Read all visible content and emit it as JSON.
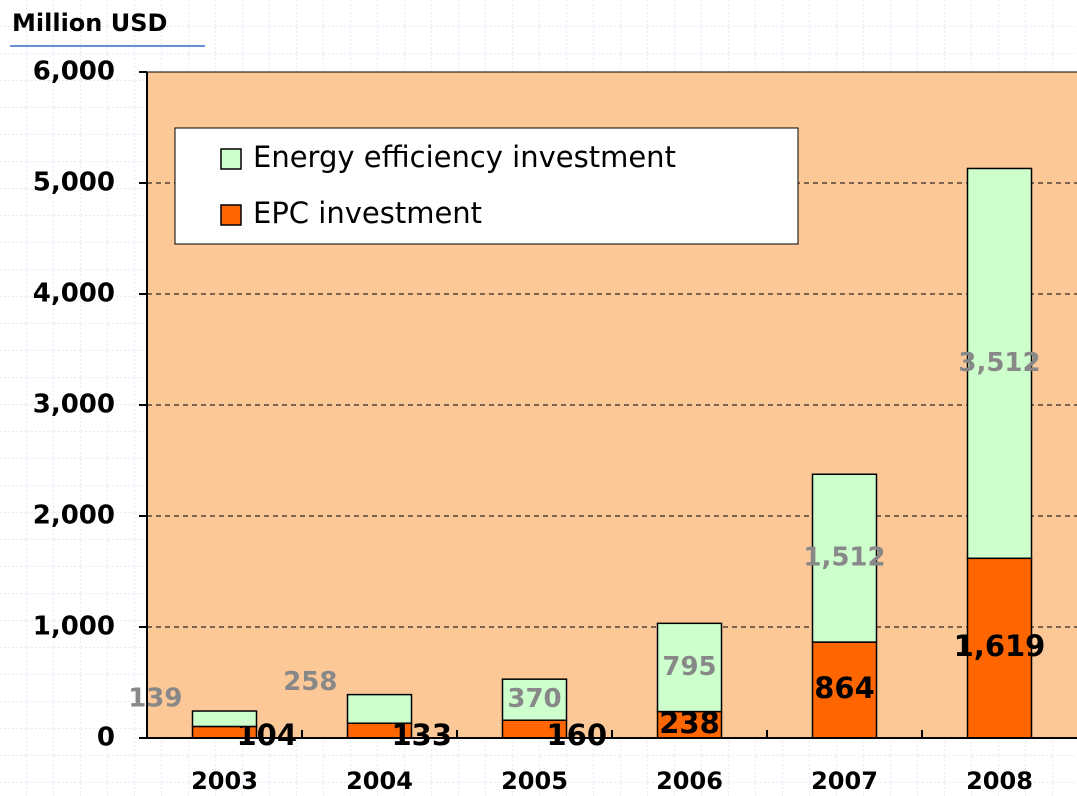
{
  "chart_data": {
    "type": "stacked_bar",
    "y_label": "Million USD",
    "categories": [
      "2003",
      "2004",
      "2005",
      "2006",
      "2007",
      "2008"
    ],
    "series": [
      {
        "name": "EPC investment",
        "color": "#ff6600",
        "label_color": "#000000",
        "values": [
          104,
          133,
          160,
          238,
          864,
          1619
        ],
        "value_labels": [
          "104",
          "133",
          "160",
          "238",
          "864",
          "1,619"
        ]
      },
      {
        "name": "Energy efficiency investment",
        "color": "#ccffcc",
        "label_color": "#888888",
        "values": [
          139,
          258,
          370,
          795,
          1512,
          3512
        ],
        "value_labels": [
          "139",
          "258",
          "370",
          "795",
          "1,512",
          "3,512"
        ]
      }
    ],
    "ylim": [
      0,
      6000
    ],
    "yticks": [
      0,
      {
        "value": 1000,
        "label": "1,000"
      },
      {
        "value": 2000,
        "label": "2,000"
      },
      {
        "value": 3000,
        "label": "3,000"
      },
      {
        "value": 4000,
        "label": "4,000"
      },
      {
        "value": 5000,
        "label": "5,000"
      },
      {
        "value": 6000,
        "label": "6,000"
      }
    ],
    "grid": true,
    "legend": "upper left",
    "plot_background": "#fcc898"
  }
}
